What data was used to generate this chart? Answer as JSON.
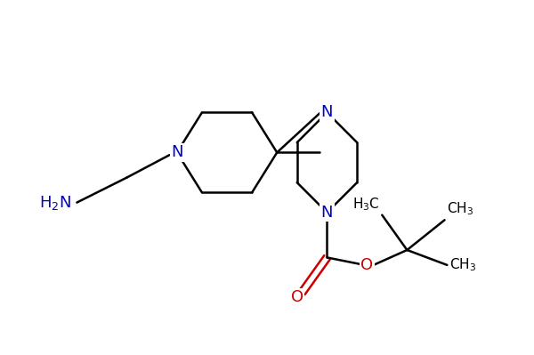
{
  "bg_color": "#ffffff",
  "bond_color": "#000000",
  "N_color": "#0000cc",
  "O_color": "#cc0000",
  "line_width": 1.8,
  "figsize": [
    6.0,
    3.99
  ],
  "dpi": 100,
  "xlim": [
    0.0,
    10.0
  ],
  "ylim": [
    1.5,
    8.5
  ]
}
